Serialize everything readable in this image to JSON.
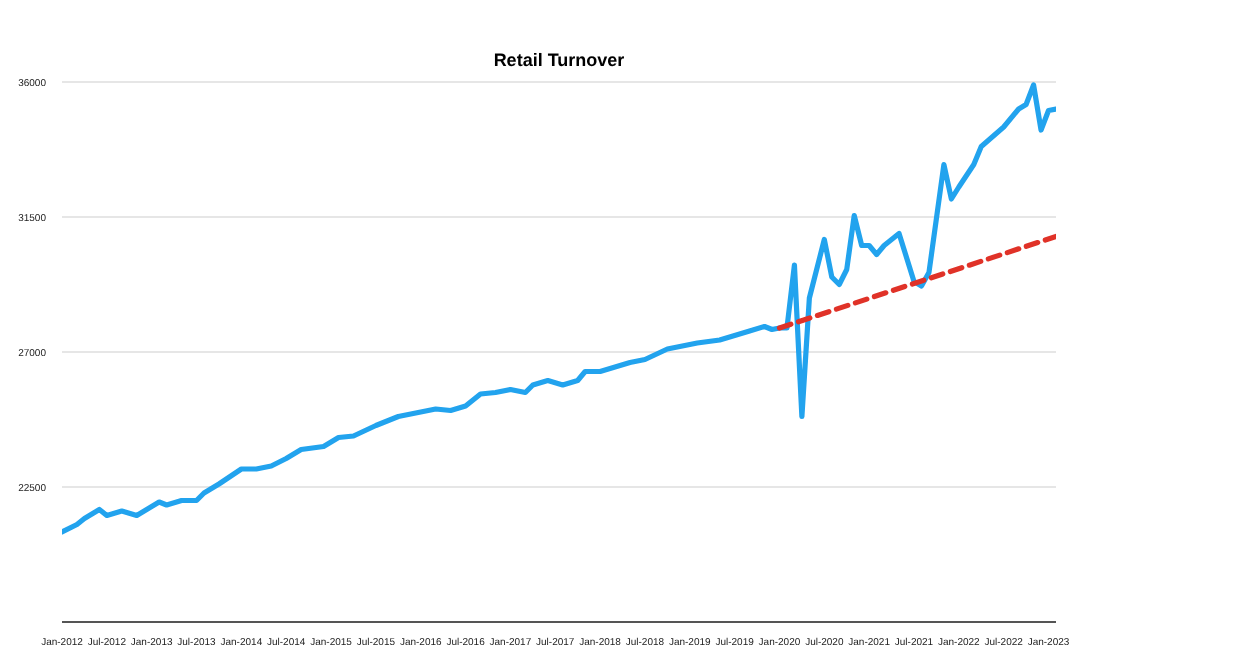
{
  "chart_data": {
    "type": "line",
    "title": "Retail Turnover",
    "x": [
      "2012-01",
      "2012-03",
      "2012-04",
      "2012-06",
      "2012-07",
      "2012-09",
      "2012-11",
      "2013-02",
      "2013-03",
      "2013-05",
      "2013-07",
      "2013-08",
      "2013-10",
      "2014-01",
      "2014-03",
      "2014-05",
      "2014-07",
      "2014-09",
      "2014-12",
      "2015-02",
      "2015-04",
      "2015-07",
      "2015-10",
      "2016-01",
      "2016-03",
      "2016-05",
      "2016-07",
      "2016-09",
      "2016-11",
      "2017-01",
      "2017-03",
      "2017-04",
      "2017-06",
      "2017-08",
      "2017-10",
      "2017-11",
      "2018-01",
      "2018-03",
      "2018-05",
      "2018-07",
      "2018-10",
      "2019-02",
      "2019-05",
      "2019-09",
      "2019-11",
      "2019-12",
      "2020-01",
      "2020-02",
      "2020-03",
      "2020-04",
      "2020-05",
      "2020-07",
      "2020-08",
      "2020-09",
      "2020-10",
      "2020-11",
      "2020-12",
      "2021-01",
      "2021-02",
      "2021-03",
      "2021-05",
      "2021-07",
      "2021-08",
      "2021-09",
      "2021-11",
      "2021-12",
      "2022-01",
      "2022-03",
      "2022-04",
      "2022-07",
      "2022-09",
      "2022-10",
      "2022-11",
      "2022-12",
      "2023-01",
      "2023-02"
    ],
    "series": [
      {
        "color": "#22a3ee",
        "values": [
          21000,
          21250,
          21450,
          21750,
          21550,
          21700,
          21550,
          22000,
          21900,
          22050,
          22050,
          22300,
          22600,
          23100,
          23100,
          23200,
          23450,
          23750,
          23850,
          24150,
          24200,
          24550,
          24850,
          25000,
          25100,
          25050,
          25200,
          25600,
          25650,
          25750,
          25650,
          25900,
          26050,
          25900,
          26050,
          26350,
          26350,
          26500,
          26650,
          26750,
          27100,
          27300,
          27400,
          27700,
          27850,
          27750,
          27800,
          27800,
          29900,
          24850,
          28800,
          30750,
          29500,
          29250,
          29750,
          31550,
          30550,
          30550,
          30250,
          30550,
          30950,
          29350,
          29200,
          29650,
          33250,
          32100,
          32500,
          33250,
          33850,
          34500,
          35100,
          35250,
          35900,
          34400,
          35050,
          35100
        ]
      },
      {
        "type": "line",
        "color": "#e03228",
        "line_style": "dashed",
        "x": [
          "2020-01",
          "2023-02"
        ],
        "values": [
          27800,
          30850
        ]
      }
    ],
    "xlim": [
      "2012-01",
      "2023-02"
    ],
    "xticks": [
      {
        "value": "2012-01",
        "label": "Jan-2012"
      },
      {
        "value": "2012-07",
        "label": "Jul-2012"
      },
      {
        "value": "2013-01",
        "label": "Jan-2013"
      },
      {
        "value": "2013-07",
        "label": "Jul-2013"
      },
      {
        "value": "2014-01",
        "label": "Jan-2014"
      },
      {
        "value": "2014-07",
        "label": "Jul-2014"
      },
      {
        "value": "2015-01",
        "label": "Jan-2015"
      },
      {
        "value": "2015-07",
        "label": "Jul-2015"
      },
      {
        "value": "2016-01",
        "label": "Jan-2016"
      },
      {
        "value": "2016-07",
        "label": "Jul-2016"
      },
      {
        "value": "2017-01",
        "label": "Jan-2017"
      },
      {
        "value": "2017-07",
        "label": "Jul-2017"
      },
      {
        "value": "2018-01",
        "label": "Jan-2018"
      },
      {
        "value": "2018-07",
        "label": "Jul-2018"
      },
      {
        "value": "2019-01",
        "label": "Jan-2019"
      },
      {
        "value": "2019-07",
        "label": "Jul-2019"
      },
      {
        "value": "2020-01",
        "label": "Jan-2020"
      },
      {
        "value": "2020-07",
        "label": "Jul-2020"
      },
      {
        "value": "2021-01",
        "label": "Jan-2021"
      },
      {
        "value": "2021-07",
        "label": "Jul-2021"
      },
      {
        "value": "2022-01",
        "label": "Jan-2022"
      },
      {
        "value": "2022-07",
        "label": "Jul-2022"
      },
      {
        "value": "2023-01",
        "label": "Jan-2023"
      }
    ],
    "ylim": [
      18000,
      36000
    ],
    "yticks": [
      22500,
      27000,
      31500,
      36000
    ],
    "grid": "y",
    "marker": "none",
    "line_style": "solid"
  }
}
